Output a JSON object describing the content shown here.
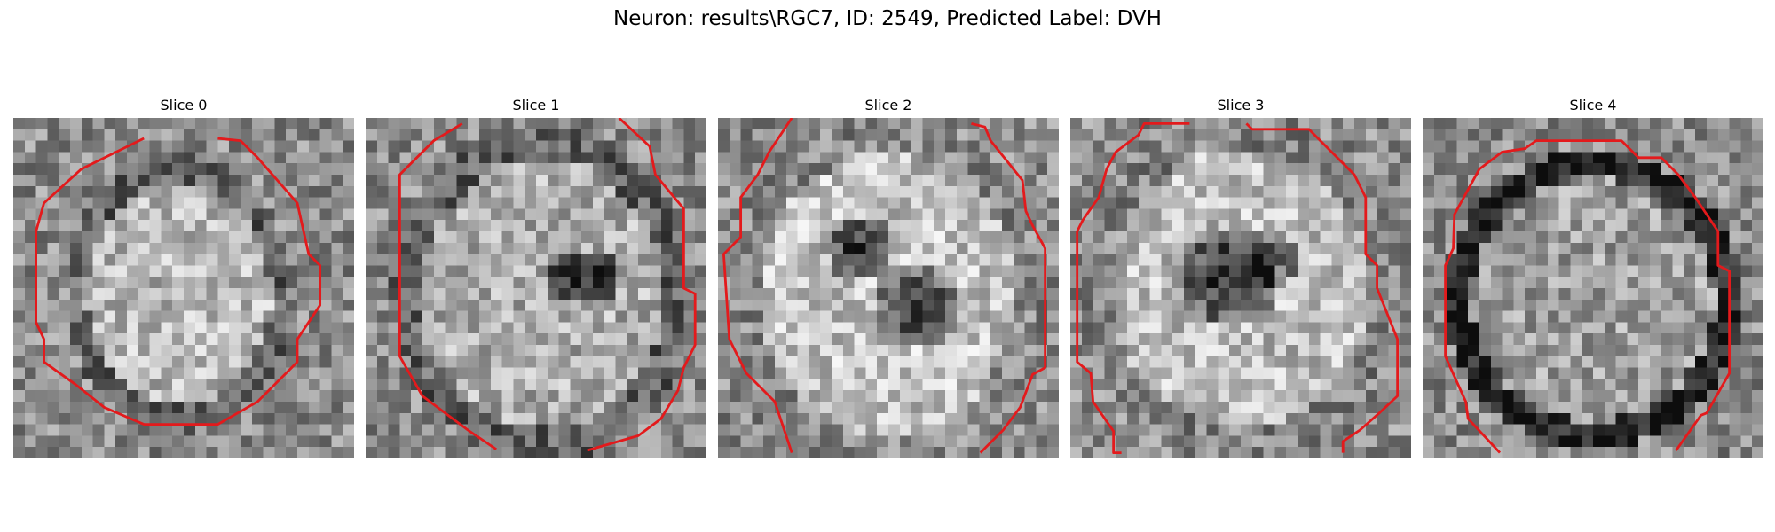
{
  "figure": {
    "title": "Neuron: results\\RGC7, ID: 2549, Predicted Label: DVH",
    "contour_color": "#e31a1c",
    "panels": [
      {
        "title": "Slice 0"
      },
      {
        "title": "Slice 1"
      },
      {
        "title": "Slice 2"
      },
      {
        "title": "Slice 3"
      },
      {
        "title": "Slice 4"
      }
    ]
  }
}
